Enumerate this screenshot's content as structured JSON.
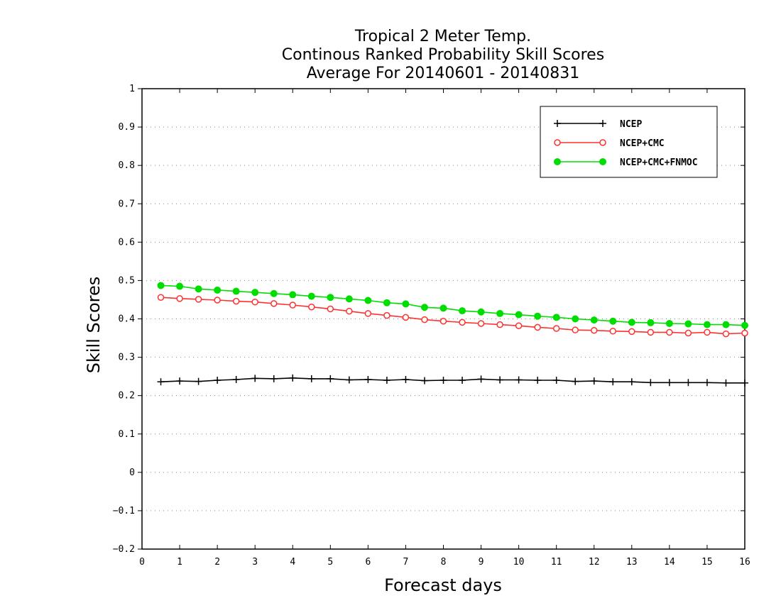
{
  "chart_data": {
    "type": "line",
    "title": [
      "Tropical 2 Meter Temp.",
      "Continous Ranked Probability Skill Scores",
      "Average For 20140601 - 20140831"
    ],
    "xlabel": "Forecast days",
    "ylabel": "Skill Scores",
    "xlim": [
      0,
      16
    ],
    "ylim": [
      -0.2,
      1
    ],
    "x_ticks": [
      0,
      1,
      2,
      3,
      4,
      5,
      6,
      7,
      8,
      9,
      10,
      11,
      12,
      13,
      14,
      15,
      16
    ],
    "y_ticks": [
      -0.2,
      -0.1,
      0,
      0.1,
      0.2,
      0.3,
      0.4,
      0.5,
      0.6,
      0.7,
      0.8,
      0.9,
      1
    ],
    "x_tick_labels": [
      "0",
      "1",
      "2",
      "3",
      "4",
      "5",
      "6",
      "7",
      "8",
      "9",
      "10",
      "11",
      "12",
      "13",
      "14",
      "15",
      "16"
    ],
    "y_tick_labels": [
      "−0.2",
      "−0.1",
      "0",
      "0.1",
      "0.2",
      "0.3",
      "0.4",
      "0.5",
      "0.6",
      "0.7",
      "0.8",
      "0.9",
      "1"
    ],
    "grid": "horizontal dotted",
    "legend_position": "top-right",
    "x": [
      0.5,
      1,
      1.5,
      2,
      2.5,
      3,
      3.5,
      4,
      4.5,
      5,
      5.5,
      6,
      6.5,
      7,
      7.5,
      8,
      8.5,
      9,
      9.5,
      10,
      10.5,
      11,
      11.5,
      12,
      12.5,
      13,
      13.5,
      14,
      14.5,
      15,
      15.5,
      16
    ],
    "series": [
      {
        "name": "NCEP",
        "color": "#000000",
        "marker": "plus",
        "values": [
          0.236,
          0.238,
          0.237,
          0.24,
          0.242,
          0.245,
          0.244,
          0.246,
          0.244,
          0.244,
          0.241,
          0.242,
          0.24,
          0.242,
          0.239,
          0.24,
          0.24,
          0.243,
          0.241,
          0.241,
          0.24,
          0.24,
          0.237,
          0.238,
          0.236,
          0.236,
          0.234,
          0.234,
          0.234,
          0.234,
          0.233,
          0.233
        ]
      },
      {
        "name": "NCEP+CMC",
        "color": "#ff3030",
        "marker": "open-circle",
        "values": [
          0.456,
          0.453,
          0.451,
          0.449,
          0.446,
          0.444,
          0.44,
          0.436,
          0.431,
          0.426,
          0.42,
          0.414,
          0.409,
          0.404,
          0.398,
          0.394,
          0.391,
          0.388,
          0.385,
          0.382,
          0.378,
          0.375,
          0.371,
          0.37,
          0.368,
          0.367,
          0.365,
          0.365,
          0.363,
          0.365,
          0.361,
          0.363
        ]
      },
      {
        "name": "NCEP+CMC+FNMOC",
        "color": "#00dd00",
        "marker": "filled-circle",
        "values": [
          0.487,
          0.485,
          0.478,
          0.475,
          0.472,
          0.469,
          0.466,
          0.463,
          0.459,
          0.456,
          0.452,
          0.448,
          0.442,
          0.439,
          0.43,
          0.428,
          0.421,
          0.418,
          0.414,
          0.411,
          0.407,
          0.404,
          0.4,
          0.397,
          0.394,
          0.391,
          0.39,
          0.388,
          0.387,
          0.385,
          0.385,
          0.383
        ]
      }
    ]
  }
}
